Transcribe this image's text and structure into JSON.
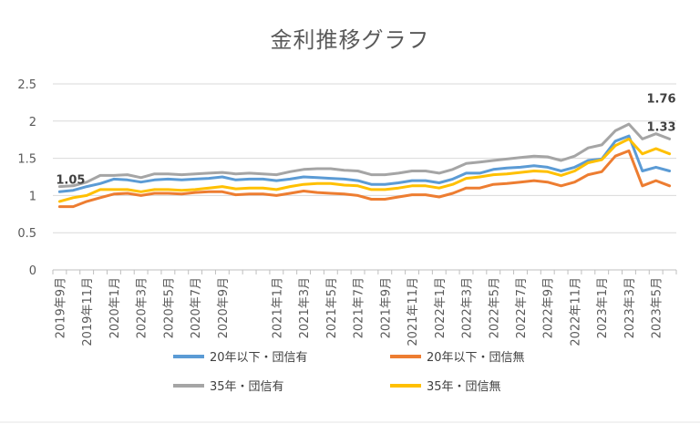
{
  "chart_data": {
    "type": "line",
    "title": "金利推移グラフ",
    "xlabel": "",
    "ylabel": "",
    "ylim": [
      0,
      2.5
    ],
    "yticks": [
      "0",
      "0.5",
      "1",
      "1.5",
      "2",
      "2.5"
    ],
    "grid": true,
    "legend_position": "bottom",
    "x": [
      "2019年9月",
      "2019年10月",
      "2019年11月",
      "2019年12月",
      "2020年1月",
      "2020年2月",
      "2020年3月",
      "2020年4月",
      "2020年5月",
      "2020年6月",
      "2020年7月",
      "2020年8月",
      "2020年9月",
      "2020年10月",
      "2020年11月",
      "2020年12月",
      "2021年1月",
      "2021年2月",
      "2021年3月",
      "2021年4月",
      "2021年5月",
      "2021年6月",
      "2021年7月",
      "2021年8月",
      "2021年9月",
      "2021年10月",
      "2021年11月",
      "2021年12月",
      "2022年1月",
      "2022年2月",
      "2022年3月",
      "2022年4月",
      "2022年5月",
      "2022年6月",
      "2022年7月",
      "2022年8月",
      "2022年9月",
      "2022年10月",
      "2022年11月",
      "2022年12月",
      "2023年1月",
      "2023年2月",
      "2023年3月",
      "2023年4月",
      "2023年5月",
      "2023年6月"
    ],
    "xtick_labels": [
      "2019年9月",
      "2019年11月",
      "2020年1月",
      "2020年3月",
      "2020年5月",
      "2020年7月",
      "2020年9月",
      "2021年1月",
      "2021年3月",
      "2021年5月",
      "2021年7月",
      "2021年9月",
      "2021年11月",
      "2022年1月",
      "2022年3月",
      "2022年5月",
      "2022年7月",
      "2022年9月",
      "2022年11月",
      "2023年1月",
      "2023年3月",
      "2023年5月"
    ],
    "series": [
      {
        "name": "20年以下・団信有",
        "color": "#5b9bd5",
        "values": [
          1.05,
          1.07,
          1.12,
          1.16,
          1.22,
          1.21,
          1.18,
          1.21,
          1.22,
          1.21,
          1.22,
          1.23,
          1.25,
          1.21,
          1.22,
          1.22,
          1.2,
          1.22,
          1.25,
          1.24,
          1.23,
          1.22,
          1.2,
          1.15,
          1.15,
          1.17,
          1.2,
          1.2,
          1.17,
          1.22,
          1.3,
          1.3,
          1.35,
          1.37,
          1.38,
          1.4,
          1.38,
          1.33,
          1.38,
          1.47,
          1.49,
          1.73,
          1.8,
          1.33,
          1.38,
          1.33
        ]
      },
      {
        "name": "20年以下・団信無",
        "color": "#ed7d31",
        "values": [
          0.85,
          0.85,
          0.92,
          0.97,
          1.02,
          1.03,
          1.0,
          1.03,
          1.03,
          1.02,
          1.04,
          1.05,
          1.05,
          1.01,
          1.02,
          1.02,
          1.0,
          1.03,
          1.06,
          1.04,
          1.03,
          1.02,
          1.0,
          0.95,
          0.95,
          0.98,
          1.01,
          1.01,
          0.98,
          1.03,
          1.1,
          1.1,
          1.15,
          1.16,
          1.18,
          1.2,
          1.18,
          1.13,
          1.18,
          1.28,
          1.32,
          1.53,
          1.6,
          1.13,
          1.2,
          1.13
        ]
      },
      {
        "name": "35年・団信有",
        "color": "#a5a5a5",
        "values": [
          1.12,
          1.13,
          1.18,
          1.27,
          1.27,
          1.28,
          1.24,
          1.29,
          1.29,
          1.28,
          1.29,
          1.3,
          1.31,
          1.29,
          1.3,
          1.29,
          1.28,
          1.32,
          1.35,
          1.36,
          1.36,
          1.34,
          1.33,
          1.28,
          1.28,
          1.3,
          1.33,
          1.33,
          1.3,
          1.35,
          1.43,
          1.45,
          1.47,
          1.49,
          1.51,
          1.53,
          1.52,
          1.47,
          1.53,
          1.64,
          1.68,
          1.87,
          1.96,
          1.76,
          1.83,
          1.76
        ]
      },
      {
        "name": "35年・団信無",
        "color": "#ffc000",
        "values": [
          0.92,
          0.97,
          1.0,
          1.08,
          1.08,
          1.08,
          1.05,
          1.08,
          1.08,
          1.07,
          1.08,
          1.1,
          1.12,
          1.09,
          1.1,
          1.1,
          1.08,
          1.12,
          1.15,
          1.16,
          1.16,
          1.14,
          1.13,
          1.08,
          1.08,
          1.1,
          1.13,
          1.13,
          1.1,
          1.15,
          1.23,
          1.25,
          1.28,
          1.29,
          1.31,
          1.33,
          1.32,
          1.27,
          1.33,
          1.44,
          1.48,
          1.67,
          1.76,
          1.56,
          1.63,
          1.56
        ]
      }
    ],
    "annotations": [
      {
        "text": "1.05",
        "series": 0,
        "index": 0
      },
      {
        "text": "1.76",
        "series": 2,
        "index": 45
      },
      {
        "text": "1.33",
        "series": 0,
        "index": 45
      }
    ]
  }
}
